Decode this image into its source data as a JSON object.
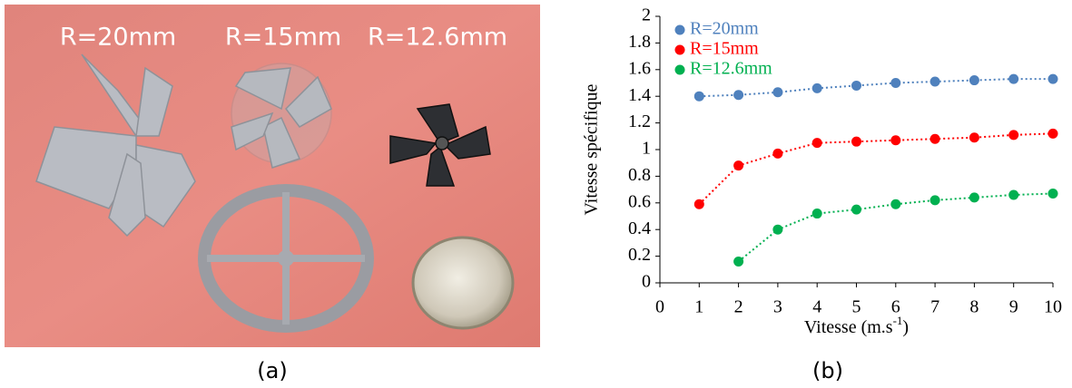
{
  "photo": {
    "labels": [
      "R=20mm",
      "R=15mm",
      "R=12.6mm"
    ],
    "caption": "(a)"
  },
  "chart_data": {
    "type": "scatter",
    "caption": "(b)",
    "x_label": {
      "text": "Vitesse (m.s",
      "sup": "-1",
      "end": ")"
    },
    "y_label": "Vitesse spécifique",
    "x": [
      1,
      2,
      3,
      4,
      5,
      6,
      7,
      8,
      9,
      10
    ],
    "series": [
      {
        "name": "R=20mm",
        "color": "#4f81bd",
        "values": [
          1.4,
          1.41,
          1.43,
          1.46,
          1.48,
          1.5,
          1.51,
          1.52,
          1.53,
          1.53
        ]
      },
      {
        "name": "R=15mm",
        "color": "#ff0000",
        "values": [
          0.59,
          0.88,
          0.97,
          1.05,
          1.06,
          1.07,
          1.08,
          1.09,
          1.11,
          1.12
        ]
      },
      {
        "name": "R=12.6mm",
        "color": "#00b050",
        "values": [
          null,
          0.16,
          0.4,
          0.52,
          0.55,
          0.59,
          0.62,
          0.64,
          0.66,
          0.67
        ]
      }
    ],
    "xlim": [
      0,
      10
    ],
    "xticks": [
      0,
      1,
      2,
      3,
      4,
      5,
      6,
      7,
      8,
      9,
      10
    ],
    "ylim": [
      0,
      2
    ],
    "yticks": [
      0,
      0.2,
      0.4,
      0.6,
      0.8,
      1,
      1.2,
      1.4,
      1.6,
      1.8,
      2
    ],
    "grid": false,
    "legend": "upper-left",
    "line_style": "dotted"
  }
}
